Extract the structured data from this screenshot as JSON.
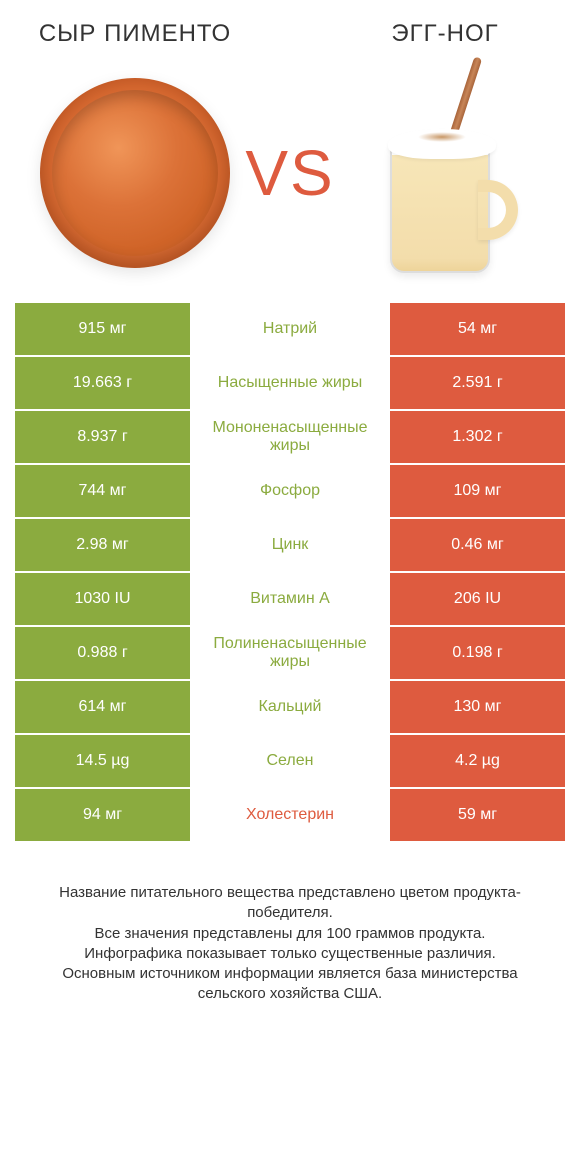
{
  "titles": {
    "left": "СЫР ПИМЕНТО",
    "right": "ЭГГ-НОГ"
  },
  "vs_label": "VS",
  "colors": {
    "winner_left": "#8bab3f",
    "winner_right": "#de5b3f",
    "mid_bg": "#ffffff",
    "nutrient_left_win": "#8bab3f",
    "nutrient_right_win": "#de5b3f",
    "vs": "#de5b3f"
  },
  "rows": [
    {
      "left": "915 мг",
      "nutrient": "Натрий",
      "right": "54 мг",
      "winner": "left"
    },
    {
      "left": "19.663 г",
      "nutrient": "Насыщенные жиры",
      "right": "2.591 г",
      "winner": "left"
    },
    {
      "left": "8.937 г",
      "nutrient": "Мононенасыщенные жиры",
      "right": "1.302 г",
      "winner": "left"
    },
    {
      "left": "744 мг",
      "nutrient": "Фосфор",
      "right": "109 мг",
      "winner": "left"
    },
    {
      "left": "2.98 мг",
      "nutrient": "Цинк",
      "right": "0.46 мг",
      "winner": "left"
    },
    {
      "left": "1030 IU",
      "nutrient": "Витамин A",
      "right": "206 IU",
      "winner": "left"
    },
    {
      "left": "0.988 г",
      "nutrient": "Полиненасыщенные жиры",
      "right": "0.198 г",
      "winner": "left"
    },
    {
      "left": "614 мг",
      "nutrient": "Кальций",
      "right": "130 мг",
      "winner": "left"
    },
    {
      "left": "14.5 µg",
      "nutrient": "Селен",
      "right": "4.2 µg",
      "winner": "left"
    },
    {
      "left": "94 мг",
      "nutrient": "Холестерин",
      "right": "59 мг",
      "winner": "right"
    }
  ],
  "footer_lines": [
    "Название питательного вещества представлено цветом продукта-победителя.",
    "Все значения представлены для 100 граммов продукта.",
    "Инфографика показывает только существенные различия.",
    "Основным источником информации является база министерства сельского хозяйства США."
  ]
}
